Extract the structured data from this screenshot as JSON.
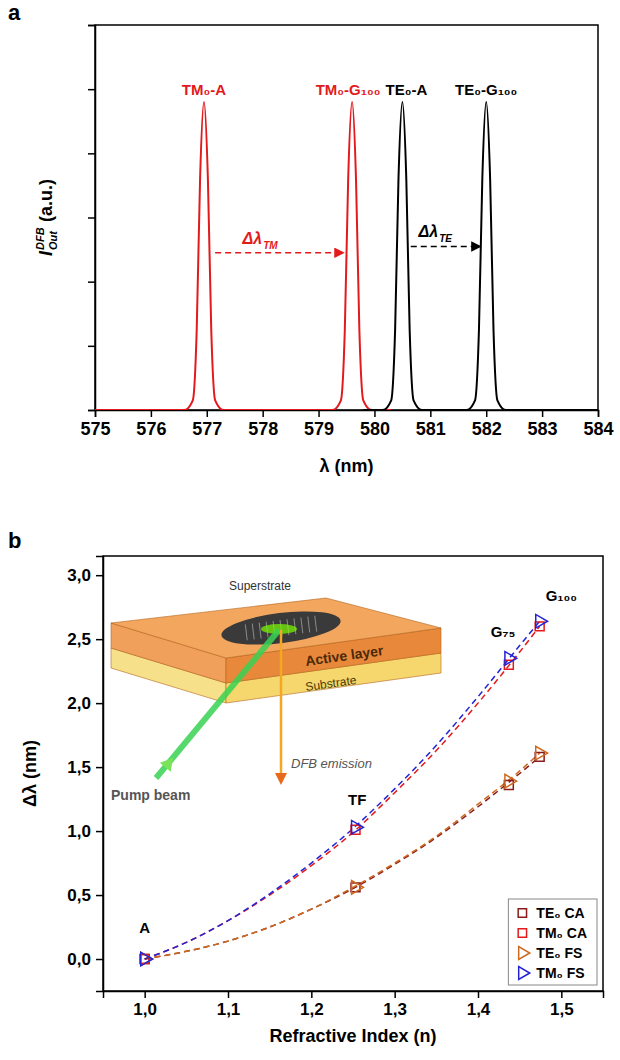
{
  "chart_data": [
    {
      "panel": "a",
      "type": "line",
      "x_label": "λ (nm)",
      "y_label": {
        "text": "I",
        "subscript": "Out",
        "superscript": "DFB",
        "suffix": "(a.u.)"
      },
      "xlim": [
        575,
        584
      ],
      "xticks": [
        575,
        576,
        577,
        578,
        579,
        580,
        581,
        582,
        583,
        584
      ],
      "ylim": [
        0,
        1.2
      ],
      "yticks": [
        0,
        0.2,
        0.4,
        0.6,
        0.8,
        1,
        1.2
      ],
      "tick_labels": "x",
      "series": [
        {
          "color": "#e31a1c",
          "x": [
            575,
            576.6,
            576.75,
            576.82,
            576.88,
            576.95,
            577.02,
            577.08,
            577.15,
            577.3,
            579.25,
            579.4,
            579.47,
            579.53,
            579.6,
            579.67,
            579.73,
            579.8,
            579.95,
            580.3
          ],
          "values": [
            0,
            0,
            0.03,
            0.25,
            0.72,
            0.96,
            0.72,
            0.25,
            0.03,
            0,
            0,
            0.03,
            0.25,
            0.72,
            0.96,
            0.72,
            0.25,
            0.03,
            0,
            0
          ]
        },
        {
          "color": "#000000",
          "x": [
            579.8,
            580.15,
            580.3,
            580.37,
            580.43,
            580.5,
            580.57,
            580.63,
            580.7,
            580.85,
            581.65,
            581.8,
            581.87,
            581.93,
            582,
            582.07,
            582.13,
            582.2,
            582.35,
            584
          ],
          "values": [
            0,
            0,
            0.03,
            0.25,
            0.72,
            0.96,
            0.72,
            0.25,
            0.03,
            0,
            0,
            0.03,
            0.25,
            0.72,
            0.96,
            0.72,
            0.25,
            0.03,
            0,
            0
          ]
        }
      ],
      "annotations": [
        {
          "text": "TM₀-A",
          "x": 576.95,
          "y": 0.96,
          "color": "#e31a1c"
        },
        {
          "text": "TM₀-G₁₀₀",
          "x": 579.6,
          "y": 0.96,
          "color": "#e31a1c"
        },
        {
          "text": "TE₀-A",
          "x": 580.5,
          "y": 0.96,
          "color": "#000000"
        },
        {
          "text": "TE₀-G₁₀₀",
          "x": 582,
          "y": 0.96,
          "color": "#000000"
        }
      ],
      "arrows": [
        {
          "text": "Δλ",
          "subscript": "TM",
          "x": [
            577.15,
            579.45
          ],
          "y": 0.49,
          "color": "#e31a1c",
          "line_style": "dashed"
        },
        {
          "text": "Δλ",
          "subscript": "TE",
          "x": [
            580.65,
            581.9
          ],
          "y": 0.51,
          "color": "#000000",
          "line_style": "dashed"
        }
      ]
    },
    {
      "panel": "b",
      "type": "scatter",
      "x_label": "Refractive Index (n)",
      "y_label": "Δλ (nm)",
      "xlim": [
        0.95,
        1.55
      ],
      "xticks": [
        {
          "value": 1,
          "label": "1,0"
        },
        {
          "value": 1.1,
          "label": "1,1"
        },
        {
          "value": 1.2,
          "label": "1,2"
        },
        {
          "value": 1.3,
          "label": "1,3"
        },
        {
          "value": 1.4,
          "label": "1,4"
        },
        {
          "value": 1.5,
          "label": "1,5"
        }
      ],
      "ylim": [
        -0.25,
        3.15
      ],
      "yticks": [
        {
          "value": 0,
          "label": "0,0"
        },
        {
          "value": 0.5,
          "label": "0,5"
        },
        {
          "value": 1,
          "label": "1,0"
        },
        {
          "value": 1.5,
          "label": "1,5"
        },
        {
          "value": 2,
          "label": "2,0"
        },
        {
          "value": 2.5,
          "label": "2,5"
        },
        {
          "value": 3,
          "label": "3,0"
        }
      ],
      "legend": "bottom right",
      "series": [
        {
          "name": "TE₀ CA",
          "color": "#8b1a1a",
          "marker": "square",
          "line_style": "dashed",
          "x": [
            1,
            1.253,
            1.437,
            1.474
          ],
          "values": [
            0,
            0.56,
            1.36,
            1.58
          ],
          "fit_x": [
            1,
            1.05,
            1.1,
            1.15,
            1.2,
            1.25,
            1.3,
            1.35,
            1.4,
            1.45,
            1.474
          ],
          "fit_values": [
            0,
            0.06,
            0.14,
            0.25,
            0.39,
            0.55,
            0.74,
            0.95,
            1.19,
            1.45,
            1.58
          ]
        },
        {
          "name": "TM₀ CA",
          "color": "#e31a1c",
          "marker": "square",
          "line_style": "dashed",
          "x": [
            1,
            1.253,
            1.437,
            1.474
          ],
          "values": [
            0,
            1.01,
            2.3,
            2.6
          ],
          "fit_x": [
            1,
            1.05,
            1.1,
            1.15,
            1.2,
            1.25,
            1.3,
            1.35,
            1.4,
            1.45,
            1.474
          ],
          "fit_values": [
            0,
            0.13,
            0.3,
            0.5,
            0.73,
            0.99,
            1.3,
            1.63,
            2,
            2.4,
            2.6
          ]
        },
        {
          "name": "TE₀ FS",
          "color": "#cc6a1f",
          "marker": "triangle-right",
          "line_style": "dashed",
          "x": [
            1,
            1.253,
            1.437,
            1.474
          ],
          "values": [
            0,
            0.56,
            1.39,
            1.61
          ],
          "fit_x": [
            1,
            1.05,
            1.1,
            1.15,
            1.2,
            1.25,
            1.3,
            1.35,
            1.4,
            1.45,
            1.474
          ],
          "fit_values": [
            0,
            0.06,
            0.14,
            0.25,
            0.39,
            0.56,
            0.75,
            0.96,
            1.21,
            1.47,
            1.61
          ]
        },
        {
          "name": "TM₀ FS",
          "color": "#2323d6",
          "marker": "triangle-right",
          "line_style": "dashed",
          "x": [
            1,
            1.253,
            1.437,
            1.474
          ],
          "values": [
            0,
            1.03,
            2.35,
            2.64
          ],
          "fit_x": [
            1,
            1.05,
            1.1,
            1.15,
            1.2,
            1.25,
            1.3,
            1.35,
            1.4,
            1.45,
            1.474
          ],
          "fit_values": [
            0,
            0.13,
            0.3,
            0.51,
            0.75,
            1.02,
            1.33,
            1.67,
            2.05,
            2.45,
            2.64
          ]
        }
      ],
      "point_labels": [
        {
          "text": "A",
          "x": 1,
          "y": 0.2
        },
        {
          "text": "TF",
          "x": 1.255,
          "y": 1.2
        },
        {
          "text": "G₇₅",
          "x": 1.43,
          "y": 2.52
        },
        {
          "text": "G₁₀₀",
          "x": 1.5,
          "y": 2.8
        }
      ],
      "inset": {
        "superstrate": "Superstrate",
        "active_layer": "Active layer",
        "substrate": "Substrate",
        "pump_beam": "Pump beam",
        "emission": "DFB emission"
      }
    }
  ]
}
